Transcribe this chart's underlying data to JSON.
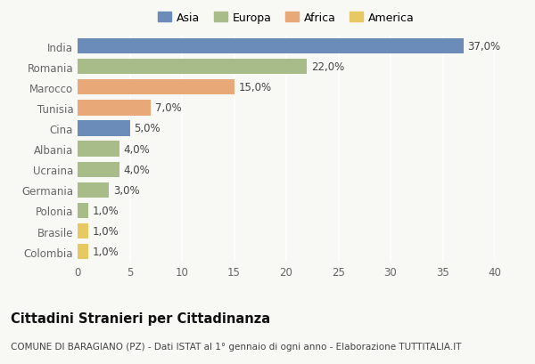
{
  "countries": [
    "India",
    "Romania",
    "Marocco",
    "Tunisia",
    "Cina",
    "Albania",
    "Ucraina",
    "Germania",
    "Polonia",
    "Brasile",
    "Colombia"
  ],
  "values": [
    37.0,
    22.0,
    15.0,
    7.0,
    5.0,
    4.0,
    4.0,
    3.0,
    1.0,
    1.0,
    1.0
  ],
  "labels": [
    "37,0%",
    "22,0%",
    "15,0%",
    "7,0%",
    "5,0%",
    "4,0%",
    "4,0%",
    "3,0%",
    "1,0%",
    "1,0%",
    "1,0%"
  ],
  "continents": [
    "Asia",
    "Europa",
    "Africa",
    "Africa",
    "Asia",
    "Europa",
    "Europa",
    "Europa",
    "Europa",
    "America",
    "America"
  ],
  "continent_colors": {
    "Asia": "#6b8cb8",
    "Europa": "#a8bc8a",
    "Africa": "#e8a878",
    "America": "#e8c860"
  },
  "legend_items": [
    "Asia",
    "Europa",
    "Africa",
    "America"
  ],
  "legend_colors": [
    "#6b8cb8",
    "#a8bc8a",
    "#e8a878",
    "#e8c860"
  ],
  "xlim": [
    0,
    40
  ],
  "xticks": [
    0,
    5,
    10,
    15,
    20,
    25,
    30,
    35,
    40
  ],
  "title": "Cittadini Stranieri per Cittadinanza",
  "subtitle": "COMUNE DI BARAGIANO (PZ) - Dati ISTAT al 1° gennaio di ogni anno - Elaborazione TUTTITALIA.IT",
  "background_color": "#f8f8f5",
  "plot_bg_color": "#f8f8f5",
  "bar_height": 0.75,
  "grid_color": "#ffffff",
  "label_fontsize": 8.5,
  "ytick_fontsize": 8.5,
  "xtick_fontsize": 8.5,
  "axis_label_color": "#666666",
  "legend_fontsize": 9,
  "title_fontsize": 10.5,
  "subtitle_fontsize": 7.5
}
